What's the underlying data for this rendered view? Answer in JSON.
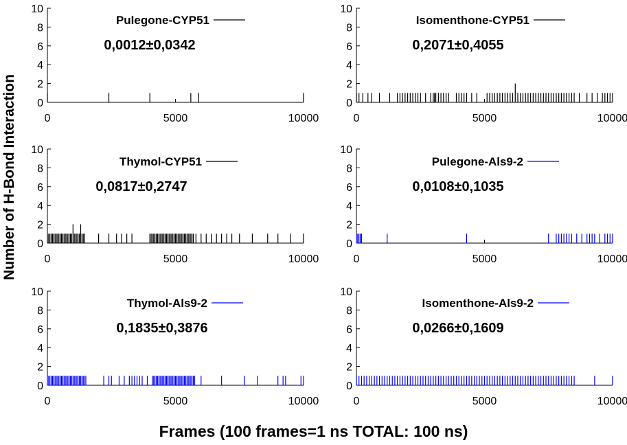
{
  "figure": {
    "ylabel": "Number of H-Bond Interaction",
    "xlabel": "Frames (100 frames=1 ns TOTAL: 100 ns)"
  },
  "chart_data": [
    {
      "type": "bar",
      "series": [
        {
          "name": "Pulegone-CYP51",
          "color": "#000000",
          "x": [
            0,
            2400,
            4000,
            5600,
            5900,
            10000
          ],
          "values": [
            1,
            1,
            1,
            1,
            1,
            1
          ]
        }
      ],
      "annotation": "0,0012±0,0342",
      "xlim": [
        0,
        10000
      ],
      "ylim": [
        0,
        10
      ],
      "xticks": [
        0,
        5000,
        10000
      ],
      "yticks": [
        0,
        2,
        4,
        6,
        8,
        10
      ]
    },
    {
      "type": "bar",
      "series": [
        {
          "name": "Isomenthone-CYP51",
          "color": "#000000",
          "x": [
            0,
            100,
            250,
            450,
            600,
            900,
            1300,
            1600,
            1700,
            1800,
            1900,
            2000,
            2100,
            2200,
            2300,
            2400,
            2500,
            2700,
            2900,
            3000,
            3050,
            3100,
            3200,
            3300,
            3400,
            3500,
            3600,
            3900,
            4000,
            4100,
            4200,
            4300,
            4500,
            4700,
            5100,
            5200,
            5300,
            5400,
            5500,
            5600,
            5700,
            5800,
            5900,
            6000,
            6100,
            6200,
            6300,
            6400,
            6500,
            6600,
            6700,
            6800,
            6900,
            7000,
            7100,
            7200,
            7300,
            7400,
            7500,
            7600,
            7700,
            7800,
            7900,
            8000,
            8100,
            8200,
            8300,
            8400,
            8500,
            8700,
            9000,
            9200,
            9400,
            9600,
            9700,
            9800,
            9900,
            10000
          ],
          "values": [
            1,
            1,
            1,
            1,
            1,
            1,
            1,
            1,
            1,
            1,
            1,
            1,
            1,
            1,
            1,
            1,
            1,
            1,
            1,
            1,
            1,
            1,
            1,
            1,
            1,
            1,
            1,
            1,
            1,
            1,
            1,
            1,
            1,
            1,
            1,
            1,
            1,
            1,
            1,
            1,
            1,
            1,
            1,
            1,
            1,
            2,
            1,
            1,
            1,
            1,
            1,
            1,
            1,
            1,
            1,
            1,
            1,
            1,
            1,
            1,
            1,
            1,
            1,
            1,
            1,
            1,
            1,
            1,
            1,
            1,
            1,
            1,
            1,
            1,
            1,
            1,
            1,
            1
          ]
        }
      ],
      "annotation": "0,2071±0,4055",
      "xlim": [
        0,
        10000
      ],
      "ylim": [
        0,
        10
      ],
      "xticks": [
        0,
        5000,
        10000
      ],
      "yticks": [
        0,
        2,
        4,
        6,
        8,
        10
      ]
    },
    {
      "type": "bar",
      "series": [
        {
          "name": "Thymol-CYP51",
          "color": "#000000",
          "x": [
            0,
            50,
            100,
            150,
            200,
            250,
            300,
            350,
            400,
            450,
            500,
            550,
            600,
            650,
            700,
            750,
            800,
            850,
            900,
            950,
            1000,
            1050,
            1100,
            1150,
            1200,
            1250,
            1300,
            1350,
            1400,
            1450,
            2000,
            2400,
            2700,
            2900,
            3100,
            3300,
            4000,
            4050,
            4100,
            4150,
            4200,
            4250,
            4300,
            4350,
            4400,
            4450,
            4500,
            4550,
            4600,
            4650,
            4700,
            4750,
            4800,
            4850,
            4900,
            4950,
            5000,
            5050,
            5100,
            5150,
            5200,
            5250,
            5300,
            5350,
            5400,
            5450,
            5500,
            5550,
            5600,
            5650,
            5700,
            5800,
            6000,
            6200,
            6400,
            6600,
            6800,
            7000,
            7200,
            7500,
            8000,
            8600,
            9000,
            9500,
            10000
          ],
          "values": [
            1,
            1,
            1,
            1,
            1,
            1,
            1,
            1,
            1,
            1,
            1,
            1,
            1,
            1,
            1,
            1,
            1,
            1,
            1,
            1,
            2,
            1,
            1,
            1,
            1,
            1,
            2,
            1,
            1,
            1,
            1,
            1,
            1,
            1,
            1,
            1,
            1,
            1,
            1,
            1,
            1,
            1,
            1,
            1,
            1,
            1,
            1,
            1,
            1,
            1,
            1,
            1,
            1,
            1,
            1,
            1,
            1,
            1,
            1,
            1,
            1,
            1,
            1,
            1,
            1,
            1,
            1,
            1,
            1,
            1,
            1,
            1,
            1,
            1,
            1,
            1,
            1,
            1,
            1,
            1,
            1,
            1,
            1,
            1,
            1
          ]
        }
      ],
      "annotation": "0,0817±0,2747",
      "xlim": [
        0,
        10000
      ],
      "ylim": [
        0,
        10
      ],
      "xticks": [
        0,
        5000,
        10000
      ],
      "yticks": [
        0,
        2,
        4,
        6,
        8,
        10
      ]
    },
    {
      "type": "bar",
      "series": [
        {
          "name": "Pulegone-Als9-2",
          "color": "#0000ff",
          "x": [
            0,
            50,
            100,
            150,
            200,
            1200,
            4300,
            7500,
            7800,
            7900,
            8000,
            8100,
            8200,
            8300,
            8400,
            8600,
            8800,
            9000,
            9100,
            9200,
            9300,
            9500,
            9700,
            9800,
            9900,
            10000
          ],
          "values": [
            1,
            1,
            1,
            1,
            1,
            1,
            1,
            1,
            1,
            1,
            1,
            1,
            1,
            1,
            1,
            1,
            1,
            1,
            1,
            1,
            1,
            1,
            1,
            1,
            1,
            1
          ]
        }
      ],
      "annotation": "0,0108±0,1035",
      "xlim": [
        0,
        10000
      ],
      "ylim": [
        0,
        10
      ],
      "xticks": [
        0,
        5000,
        10000
      ],
      "yticks": [
        0,
        2,
        4,
        6,
        8,
        10
      ]
    },
    {
      "type": "bar",
      "series": [
        {
          "name": "Thymol-Als9-2",
          "color": "#0000ff",
          "x": [
            0,
            50,
            100,
            150,
            200,
            250,
            300,
            350,
            400,
            450,
            500,
            550,
            600,
            650,
            700,
            750,
            800,
            850,
            900,
            950,
            1000,
            1050,
            1100,
            1150,
            1200,
            1250,
            1300,
            1350,
            1400,
            1450,
            1500,
            2200,
            2400,
            2500,
            2800,
            3000,
            3200,
            3300,
            3400,
            3500,
            3600,
            3700,
            3900,
            4100,
            4150,
            4200,
            4250,
            4300,
            4350,
            4400,
            4450,
            4500,
            4550,
            4600,
            4650,
            4700,
            4750,
            4800,
            4850,
            4900,
            4950,
            5000,
            5050,
            5100,
            5150,
            5200,
            5250,
            5300,
            5350,
            5400,
            5450,
            5500,
            5550,
            5600,
            5650,
            5700,
            5750,
            6000,
            6800,
            7700,
            8200,
            9000,
            9200,
            9300,
            9900,
            10000
          ],
          "values": [
            1,
            1,
            1,
            1,
            1,
            1,
            1,
            1,
            1,
            1,
            1,
            1,
            1,
            1,
            1,
            1,
            1,
            1,
            1,
            1,
            1,
            1,
            1,
            1,
            1,
            1,
            1,
            1,
            1,
            1,
            1,
            1,
            1,
            1,
            1,
            1,
            1,
            1,
            1,
            1,
            1,
            1,
            1,
            1,
            1,
            1,
            1,
            1,
            1,
            1,
            1,
            1,
            1,
            1,
            1,
            1,
            1,
            1,
            1,
            1,
            1,
            1,
            1,
            1,
            1,
            1,
            1,
            1,
            1,
            1,
            1,
            1,
            1,
            1,
            1,
            1,
            1,
            1,
            1,
            1,
            1,
            1,
            1,
            1,
            1,
            1
          ]
        }
      ],
      "annotation": "0,1835±0,3876",
      "xlim": [
        0,
        10000
      ],
      "ylim": [
        0,
        10
      ],
      "xticks": [
        0,
        5000,
        10000
      ],
      "yticks": [
        0,
        2,
        4,
        6,
        8,
        10
      ]
    },
    {
      "type": "bar",
      "series": [
        {
          "name": "Isomenthone-Als9-2",
          "color": "#0000ff",
          "x": [
            0,
            100,
            200,
            300,
            400,
            500,
            600,
            700,
            800,
            900,
            1000,
            1100,
            1200,
            1300,
            1400,
            1500,
            1600,
            1700,
            1800,
            1900,
            2000,
            2100,
            2200,
            2300,
            2400,
            2500,
            2600,
            2700,
            2800,
            2900,
            3000,
            3100,
            3200,
            3300,
            3400,
            3500,
            3600,
            3700,
            3800,
            3900,
            4000,
            4100,
            4200,
            4300,
            4400,
            4500,
            4600,
            4700,
            4800,
            4900,
            5000,
            5100,
            5200,
            5300,
            5400,
            5500,
            5600,
            5700,
            5800,
            5900,
            6000,
            6100,
            6200,
            6300,
            6400,
            6500,
            6600,
            6700,
            6800,
            6900,
            7000,
            7100,
            7200,
            7300,
            7400,
            7500,
            7600,
            7700,
            7800,
            7900,
            8000,
            8100,
            8200,
            8300,
            8400,
            8500,
            9300,
            10000
          ],
          "values": [
            1,
            1,
            1,
            1,
            1,
            1,
            1,
            1,
            1,
            1,
            1,
            1,
            1,
            1,
            1,
            1,
            1,
            1,
            1,
            1,
            1,
            1,
            1,
            1,
            1,
            1,
            1,
            1,
            1,
            1,
            1,
            1,
            1,
            1,
            1,
            1,
            1,
            1,
            1,
            1,
            1,
            1,
            1,
            1,
            1,
            1,
            1,
            1,
            1,
            1,
            1,
            1,
            1,
            1,
            1,
            1,
            1,
            1,
            1,
            1,
            1,
            1,
            1,
            1,
            1,
            1,
            1,
            1,
            1,
            1,
            1,
            1,
            1,
            1,
            1,
            1,
            1,
            1,
            1,
            1,
            1,
            1,
            1,
            1,
            1,
            1,
            1,
            1
          ]
        }
      ],
      "annotation": "0,0266±0,1609",
      "xlim": [
        0,
        10000
      ],
      "ylim": [
        0,
        10
      ],
      "xticks": [
        0,
        5000,
        10000
      ],
      "yticks": [
        0,
        2,
        4,
        6,
        8,
        10
      ]
    }
  ]
}
